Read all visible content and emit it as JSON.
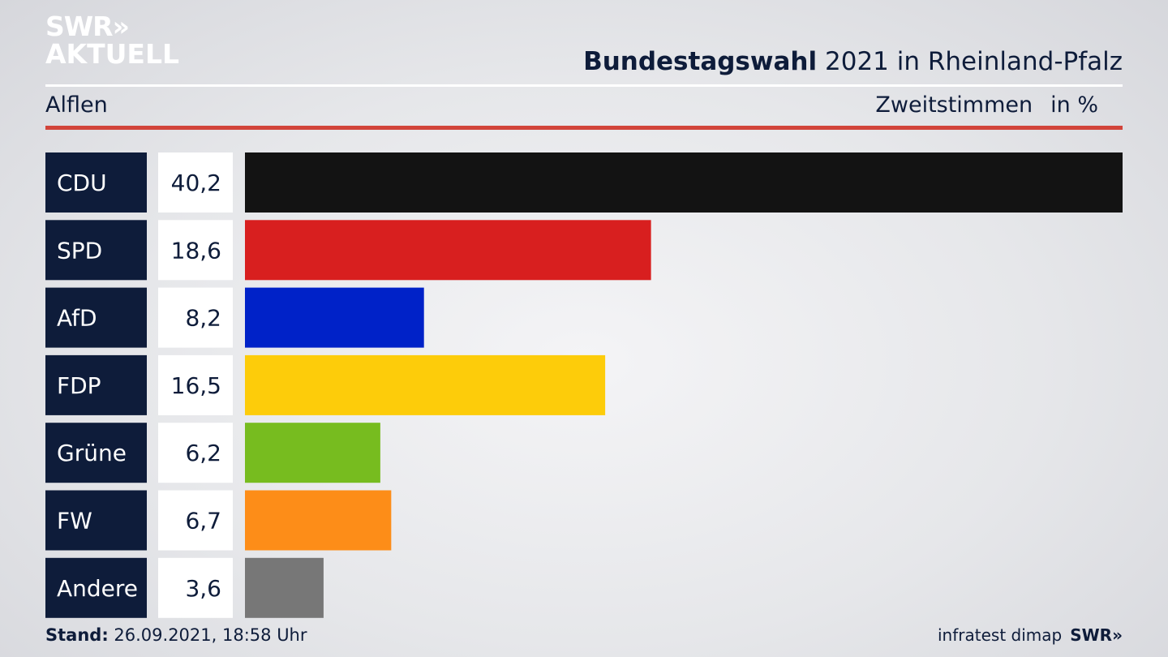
{
  "logo": {
    "line1": "SWR»",
    "line2": "AKTUELL"
  },
  "header": {
    "title_bold": "Bundestagswahl",
    "title_rest": "2021 in Rheinland-Pfalz"
  },
  "subheader": {
    "location": "Alflen",
    "measure": "Zweitstimmen",
    "unit": "in %"
  },
  "footer": {
    "stand_label": "Stand:",
    "stand_value": "26.09.2021, 18:58 Uhr",
    "source": "infratest dimap",
    "brand": "SWR»"
  },
  "chart_data": {
    "type": "bar",
    "orientation": "horizontal",
    "title": "",
    "categories": [
      "CDU",
      "SPD",
      "AfD",
      "FDP",
      "Grüne",
      "FW",
      "Andere"
    ],
    "values": [
      40.2,
      18.6,
      8.2,
      16.5,
      6.2,
      6.7,
      3.6
    ],
    "value_labels": [
      "40,2",
      "18,6",
      "8,2",
      "16,5",
      "6,2",
      "6,7",
      "3,6"
    ],
    "colors": [
      "#131313",
      "#d81f1f",
      "#0022c8",
      "#fdcc0a",
      "#77bc1f",
      "#fd8d18",
      "#777777"
    ],
    "xlim": [
      0,
      40.2
    ],
    "grid": false,
    "legend": "none"
  }
}
